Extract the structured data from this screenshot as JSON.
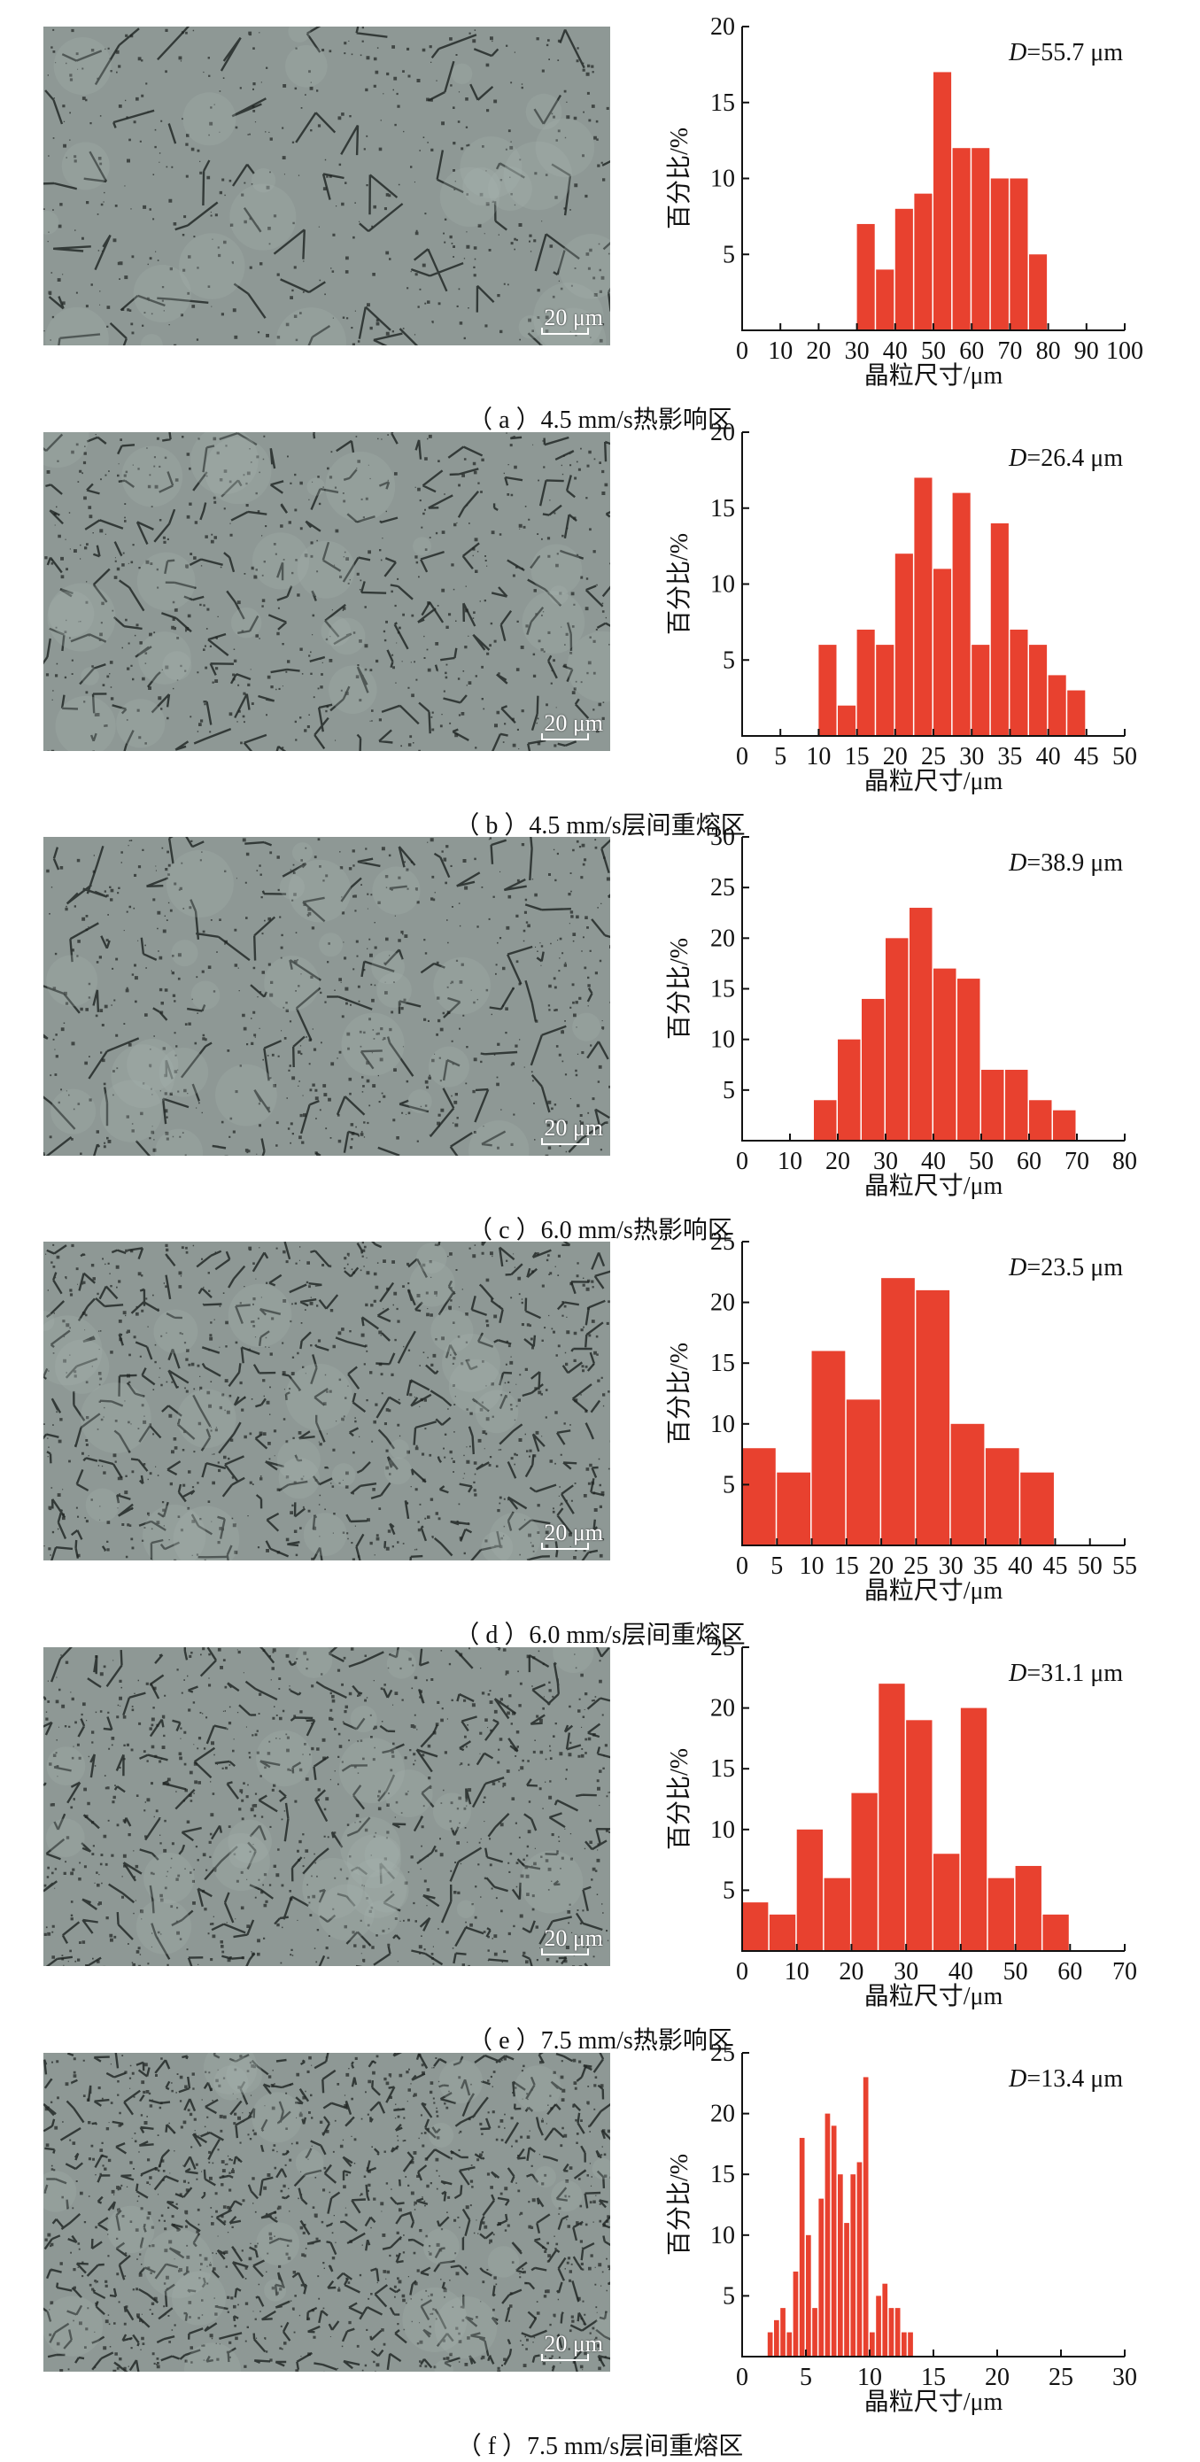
{
  "panels": [
    {
      "caption": "（ a ）4.5 mm/s热影响区",
      "scale": "20 μm",
      "d_var": "D",
      "d_value": "=55.7 μm",
      "chart_data": {
        "type": "bar",
        "xlabel": "晶粒尺寸/μm",
        "ylabel": "百分比/%",
        "xlim": [
          0,
          100
        ],
        "ylim": [
          0,
          20
        ],
        "xticks": [
          0,
          10,
          20,
          30,
          40,
          50,
          60,
          70,
          80,
          90,
          100
        ],
        "xticklabels": [
          "0",
          "10",
          "20",
          "30",
          "40",
          "50",
          "60",
          "70",
          "80",
          "90",
          "100"
        ],
        "yticks": [
          5,
          10,
          15,
          20
        ],
        "bin_width": 5,
        "x": [
          30,
          35,
          40,
          45,
          50,
          55,
          60,
          65,
          70,
          75
        ],
        "values": [
          7,
          4,
          8,
          9,
          17,
          12,
          12,
          10,
          10,
          5
        ],
        "bar_color": "#e8412f"
      }
    },
    {
      "caption": "（ b ）4.5 mm/s层间重熔区",
      "scale": "20 μm",
      "d_var": "D",
      "d_value": "=26.4 μm",
      "chart_data": {
        "type": "bar",
        "xlabel": "晶粒尺寸/μm",
        "ylabel": "百分比/%",
        "xlim": [
          0,
          50
        ],
        "ylim": [
          0,
          20
        ],
        "xticks": [
          0,
          5,
          10,
          15,
          20,
          25,
          30,
          35,
          40,
          45,
          50
        ],
        "xticklabels": [
          "0",
          "5",
          "10",
          "15",
          "20",
          "25",
          "30",
          "35",
          "40",
          "45",
          "50"
        ],
        "yticks": [
          5,
          10,
          15,
          20
        ],
        "bin_width": 2.5,
        "x": [
          10,
          12.5,
          15,
          17.5,
          20,
          22.5,
          25,
          27.5,
          30,
          32.5,
          35,
          37.5,
          40,
          42.5
        ],
        "values": [
          6,
          2,
          7,
          6,
          12,
          17,
          11,
          16,
          6,
          14,
          7,
          6,
          4,
          3
        ],
        "bar_color": "#e8412f"
      }
    },
    {
      "caption": "（ c ）6.0 mm/s热影响区",
      "scale": "20 μm",
      "d_var": "D",
      "d_value": "=38.9 μm",
      "chart_data": {
        "type": "bar",
        "xlabel": "晶粒尺寸/μm",
        "ylabel": "百分比/%",
        "xlim": [
          0,
          80
        ],
        "ylim": [
          0,
          30
        ],
        "xticks": [
          0,
          10,
          20,
          30,
          40,
          50,
          60,
          70,
          80
        ],
        "xticklabels": [
          "0",
          "10",
          "20",
          "30",
          "40",
          "50",
          "60",
          "70",
          "80"
        ],
        "yticks": [
          5,
          10,
          15,
          20,
          25,
          30
        ],
        "bin_width": 5,
        "x": [
          15,
          20,
          25,
          30,
          35,
          40,
          45,
          50,
          55,
          60,
          65
        ],
        "values": [
          4,
          10,
          14,
          20,
          23,
          17,
          16,
          7,
          7,
          4,
          3
        ],
        "bar_color": "#e8412f"
      }
    },
    {
      "caption": "（ d ）6.0 mm/s层间重熔区",
      "scale": "20 μm",
      "d_var": "D",
      "d_value": "=23.5 μm",
      "chart_data": {
        "type": "bar",
        "xlabel": "晶粒尺寸/μm",
        "ylabel": "百分比/%",
        "xlim": [
          0,
          55
        ],
        "ylim": [
          0,
          25
        ],
        "xticks": [
          0,
          5,
          10,
          15,
          20,
          25,
          30,
          35,
          40,
          45,
          50,
          55
        ],
        "xticklabels": [
          "0",
          "5",
          "10",
          "15",
          "20",
          "25",
          "30",
          "35",
          "40",
          "45",
          "50",
          "55"
        ],
        "yticks": [
          5,
          10,
          15,
          20,
          25
        ],
        "bin_width": 5,
        "x": [
          0,
          5,
          10,
          15,
          20,
          25,
          30,
          35,
          40
        ],
        "values": [
          8,
          6,
          16,
          12,
          22,
          21,
          10,
          8,
          6
        ],
        "bar_color": "#e8412f"
      }
    },
    {
      "caption": "（ e ）7.5 mm/s热影响区",
      "scale": "20 μm",
      "d_var": "D",
      "d_value": "=31.1 μm",
      "chart_data": {
        "type": "bar",
        "xlabel": "晶粒尺寸/μm",
        "ylabel": "百分比/%",
        "xlim": [
          0,
          70
        ],
        "ylim": [
          0,
          25
        ],
        "xticks": [
          0,
          10,
          20,
          30,
          40,
          50,
          60,
          70
        ],
        "xticklabels": [
          "0",
          "10",
          "20",
          "30",
          "40",
          "50",
          "60",
          "70"
        ],
        "yticks": [
          5,
          10,
          15,
          20,
          25
        ],
        "bin_width": 5,
        "x": [
          0,
          5,
          10,
          15,
          20,
          25,
          30,
          35,
          40,
          45,
          50,
          55
        ],
        "values": [
          4,
          3,
          10,
          6,
          13,
          22,
          19,
          8,
          20,
          6,
          7,
          3
        ],
        "bar_color": "#e8412f"
      }
    },
    {
      "caption": "（ f ）7.5 mm/s层间重熔区",
      "scale": "20 μm",
      "d_var": "D",
      "d_value": "=13.4 μm",
      "chart_data": {
        "type": "bar",
        "xlabel": "晶粒尺寸/μm",
        "ylabel": "百分比/%",
        "xlim": [
          0,
          30
        ],
        "ylim": [
          0,
          25
        ],
        "xticks": [
          0,
          5,
          10,
          15,
          20,
          25,
          30
        ],
        "xticklabels": [
          "0",
          "5",
          "10",
          "15",
          "20",
          "25",
          "30"
        ],
        "yticks": [
          5,
          10,
          15,
          20,
          25
        ],
        "bin_width": 0.5,
        "x": [
          2,
          2.5,
          3,
          3.5,
          4,
          4.5,
          5,
          5.5,
          6,
          6.5,
          7,
          7.5,
          8,
          8.5,
          9,
          9.5,
          10,
          10.5,
          11,
          11.5,
          12,
          12.5,
          13,
          13.5,
          14,
          14.5,
          15
        ],
        "values": [
          2,
          3,
          4,
          2,
          7,
          18,
          10,
          4,
          13,
          20,
          19,
          15,
          11,
          15,
          16,
          23,
          2,
          5,
          6,
          4,
          4,
          2,
          2,
          0,
          0,
          0,
          0
        ],
        "bar_color": "#e8412f"
      }
    }
  ]
}
